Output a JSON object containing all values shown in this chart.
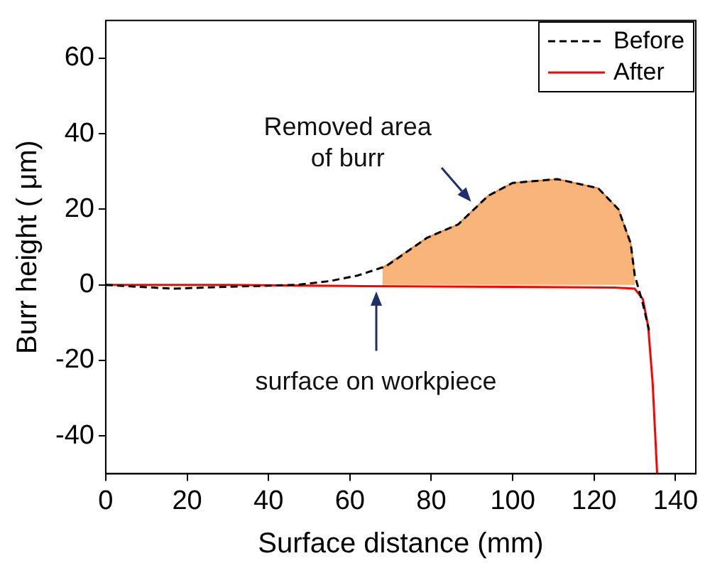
{
  "chart_data": {
    "type": "line",
    "xlabel": "Surface distance (mm)",
    "ylabel": "Burr height ( μm)",
    "xlim": [
      0,
      145
    ],
    "xticks": [
      0,
      20,
      40,
      60,
      80,
      100,
      120,
      140
    ],
    "ylim": [
      -50,
      70
    ],
    "yticks": [
      -40,
      -20,
      0,
      20,
      40,
      60
    ],
    "grid": false,
    "legend": "top right",
    "marker": "none",
    "series": [
      {
        "name": "Before",
        "color": "#000000",
        "line_style": "dashed",
        "x": [
          0,
          8,
          16.6,
          30,
          47,
          55,
          62,
          69,
          79,
          86.6,
          94,
          100,
          111,
          121,
          126,
          129,
          130,
          132,
          133.5
        ],
        "values": [
          0,
          -0.5,
          -1,
          -0.5,
          0,
          1,
          2.5,
          5,
          12.5,
          16,
          23.6,
          27,
          28,
          25.6,
          20,
          11,
          2.5,
          -5,
          -12
        ]
      },
      {
        "name": "After",
        "color": "#ff0000",
        "line_style": "solid",
        "x": [
          0,
          30,
          60,
          100,
          125,
          130,
          132,
          133.3,
          134.4,
          135.5
        ],
        "values": [
          0,
          0,
          -0.3,
          -0.5,
          -0.7,
          -1,
          -3.8,
          -11,
          -26,
          -50
        ]
      },
      {
        "type": "area",
        "color": "#f5821f",
        "x": [
          68,
          79,
          86.6,
          94,
          100,
          111,
          121,
          126,
          129,
          130
        ],
        "values": [
          4.5,
          12.5,
          16,
          23.6,
          27,
          28,
          25.6,
          20,
          11,
          2.5
        ]
      }
    ],
    "annotations": [
      "Removed area of burr",
      "surface on workpiece"
    ]
  }
}
